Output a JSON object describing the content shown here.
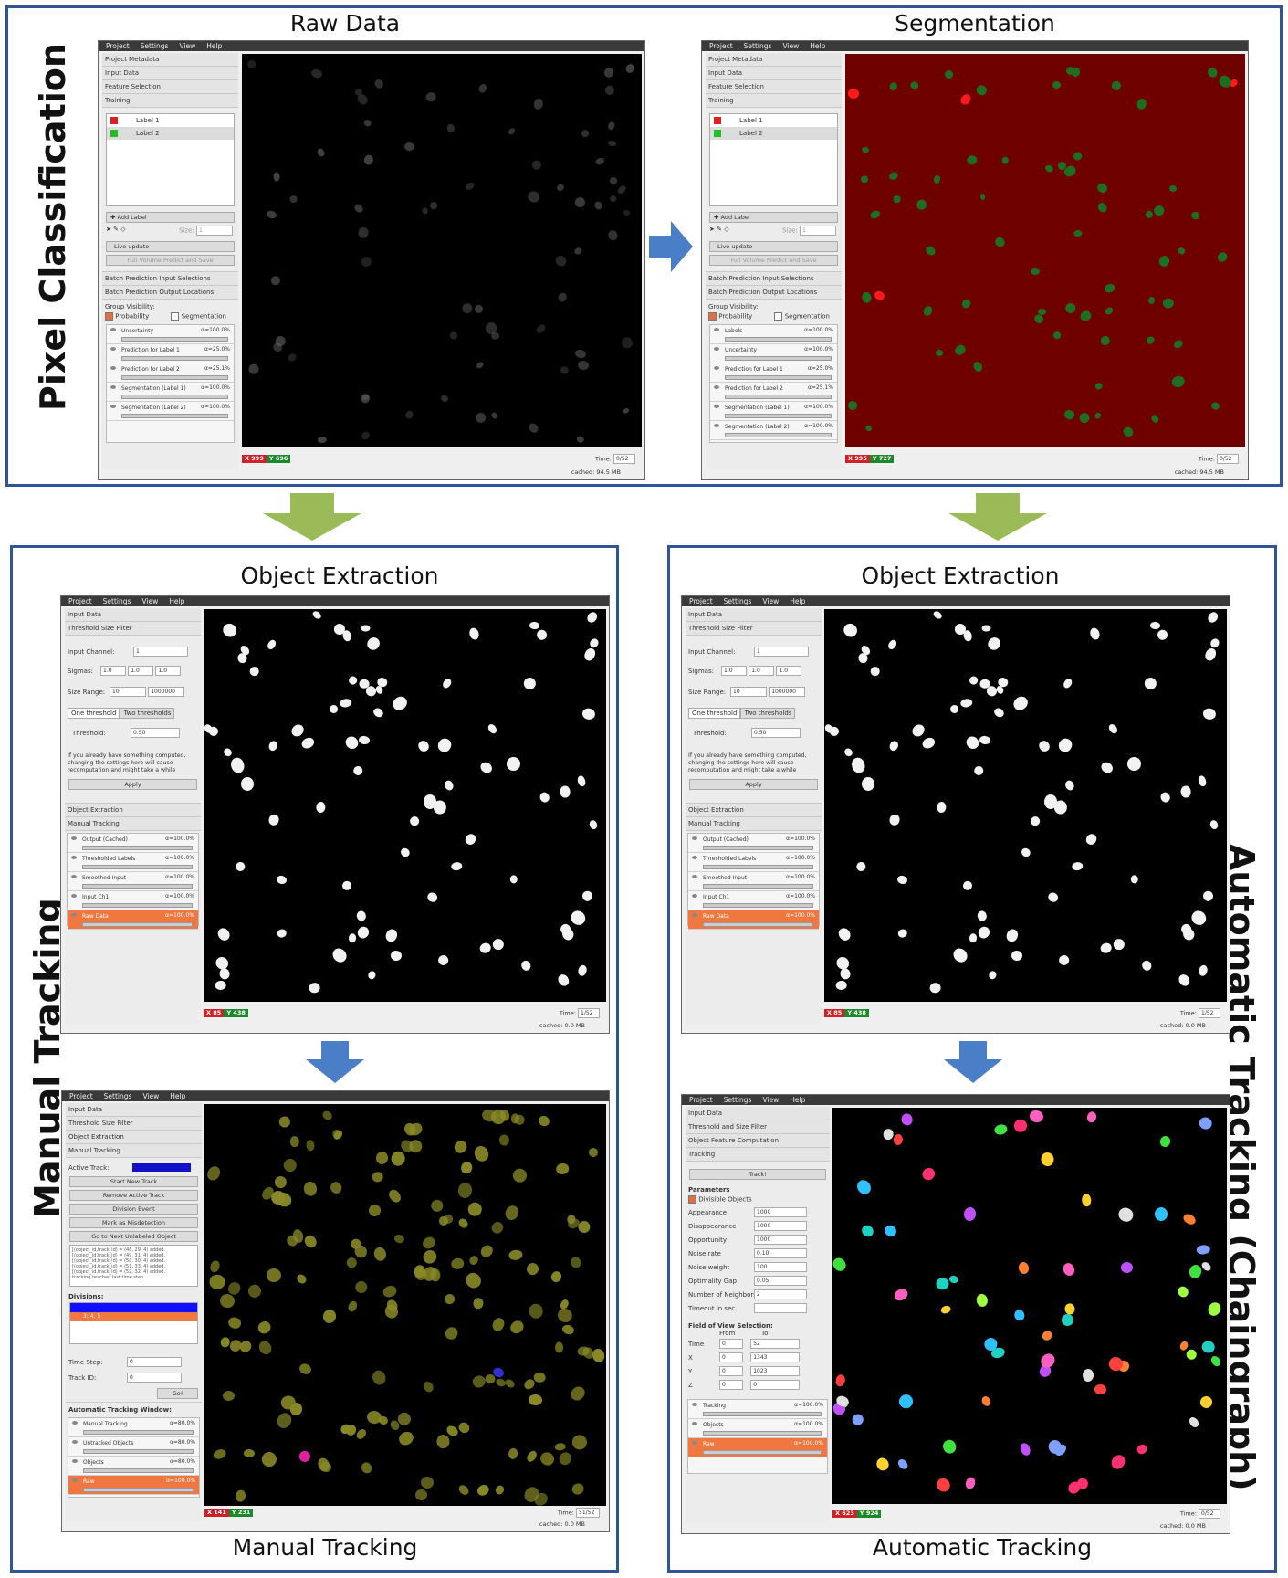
{
  "side_labels": {
    "pixel": "Pixel Classification",
    "manual": "Manual Tracking",
    "automatic": "Automatic Tracking (Chaingraph)"
  },
  "panel_titles": {
    "raw": "Raw Data",
    "seg": "Segmentation",
    "oe_left": "Object Extraction",
    "oe_right": "Object Extraction",
    "manual": "Manual Tracking",
    "automatic": "Automatic Tracking"
  },
  "menu": [
    "Project",
    "Settings",
    "View",
    "Help"
  ],
  "pc": {
    "applets": [
      "Project Metadata",
      "Input Data",
      "Feature Selection",
      "Training"
    ],
    "labels": [
      {
        "name": "Label 1",
        "color": "#e02020"
      },
      {
        "name": "Label 2",
        "color": "#20c020"
      }
    ],
    "add_label": "Add Label",
    "size_label": "Size:",
    "size_value": "1",
    "live_update": "Live update",
    "full_volume": "Full Volume Predict and Save",
    "batch": [
      "Batch Prediction Input Selections",
      "Batch Prediction Output Locations"
    ],
    "group_visibility": "Group Visibility:",
    "chk_prob": "Probability",
    "chk_seg": "Segmentation",
    "layers_raw": [
      {
        "name": "Uncertainty",
        "opacity": "α=100.0%"
      },
      {
        "name": "Prediction for Label 1",
        "opacity": "α=25.0%"
      },
      {
        "name": "Prediction for Label 2",
        "opacity": "α=25.1%"
      },
      {
        "name": "Segmentation (Label 1)",
        "opacity": "α=100.0%"
      },
      {
        "name": "Segmentation (Label 2)",
        "opacity": "α=100.0%"
      }
    ],
    "layers_seg": [
      {
        "name": "Labels",
        "opacity": "α=100.0%"
      },
      {
        "name": "Uncertainty",
        "opacity": "α=100.0%"
      },
      {
        "name": "Prediction for Label 1",
        "opacity": "α=25.0%"
      },
      {
        "name": "Prediction for Label 2",
        "opacity": "α=25.1%"
      },
      {
        "name": "Segmentation (Label 1)",
        "opacity": "α=100.0%"
      },
      {
        "name": "Segmentation (Label 2)",
        "opacity": "α=100.0%"
      }
    ],
    "raw_x": "999",
    "raw_y": "696",
    "seg_x": "995",
    "seg_y": "727",
    "time_label": "Time:",
    "time_value": "0/52",
    "cached": "cached: 94.5 MB"
  },
  "oe": {
    "applets": [
      "Input Data",
      "Threshold Size Filter"
    ],
    "input_channel_label": "Input Channel:",
    "input_channel": "1",
    "sigmas_label": "Sigmas:",
    "sigmas": [
      "1.0",
      "1.0",
      "1.0"
    ],
    "size_range_label": "Size Range:",
    "size_min": "10",
    "size_max": "1000000",
    "tab_one": "One threshold",
    "tab_two": "Two thresholds",
    "threshold_label": "Threshold:",
    "threshold": "0.50",
    "note": "If you already have something computed, changing the settings here will cause recomputation and might take a while",
    "apply": "Apply",
    "applets_after": [
      "Object Extraction",
      "Manual Tracking"
    ],
    "layers": [
      {
        "name": "Output (Cached)",
        "opacity": "α=100.0%"
      },
      {
        "name": "Thresholded Labels",
        "opacity": "α=100.0%"
      },
      {
        "name": "Smoothed Input",
        "opacity": "α=100.0%"
      },
      {
        "name": "Input Ch1",
        "opacity": "α=100.0%"
      },
      {
        "name": "Raw Data",
        "opacity": "α=100.0%"
      }
    ],
    "x": "85",
    "y": "438",
    "time_label": "Time:",
    "time_value": "1/52",
    "cached": "cached: 0.0 MB"
  },
  "mt": {
    "applets": [
      "Input Data",
      "Threshold Size Filter",
      "Object Extraction",
      "Manual Tracking"
    ],
    "active_track": "Active Track:",
    "buttons": [
      "Start New Track",
      "Remove Active Track",
      "Division Event",
      "Mark as Misdetection",
      "Go to Next Unlabeled Object"
    ],
    "log": [
      "[(object_id,track_id) = (48, 29, 4) added.",
      "[(object_id,track_id) = (49, 31, 4) added.",
      "[(object_id,track_id) = (50, 30, 4) added.",
      "[(object_id,track_id) = (51, 33, 4) added.",
      "[(object_id,track_id) = (52, 32, 4) added.",
      "tracking reached last time step."
    ],
    "divisions_label": "Divisions:",
    "division_selected": "3: 4, 5",
    "time_step_label": "Time Step:",
    "time_step": "0",
    "track_id_label": "Track ID:",
    "track_id": "0",
    "go": "Go!",
    "auto_window": "Automatic Tracking Window:",
    "layers": [
      {
        "name": "Manual Tracking",
        "opacity": "α=80.0%"
      },
      {
        "name": "Untracked Objects",
        "opacity": "α=80.0%"
      },
      {
        "name": "Objects",
        "opacity": "α=80.0%"
      },
      {
        "name": "Raw",
        "opacity": "α=100.0%"
      }
    ],
    "x": "141",
    "y": "231",
    "time_label": "Time:",
    "time_value": "51/52",
    "cached": "cached: 0.0 MB"
  },
  "at": {
    "applets": [
      "Input Data",
      "Threshold and Size Filter",
      "Object Feature Computation",
      "Tracking"
    ],
    "track": "Track!",
    "parameters": "Parameters",
    "divisible": "Divisible Objects",
    "params": [
      {
        "label": "Appearance",
        "value": "1000"
      },
      {
        "label": "Disappearance",
        "value": "1000"
      },
      {
        "label": "Opportunity",
        "value": "1000"
      },
      {
        "label": "Noise rate",
        "value": "0.10"
      },
      {
        "label": "Noise weight",
        "value": "100"
      },
      {
        "label": "Optimality Gap",
        "value": "0.05"
      },
      {
        "label": "Number of Neighbors",
        "value": "2"
      },
      {
        "label": "Timeout in sec.",
        "value": ""
      }
    ],
    "fov": "Field of View Selection:",
    "from": "From",
    "to": "To",
    "fov_rows": [
      {
        "label": "Time",
        "from": "0",
        "to": "52"
      },
      {
        "label": "X",
        "from": "0",
        "to": "1343"
      },
      {
        "label": "Y",
        "from": "0",
        "to": "1023"
      },
      {
        "label": "Z",
        "from": "0",
        "to": "0"
      }
    ],
    "layers": [
      {
        "name": "Tracking",
        "opacity": "α=100.0%"
      },
      {
        "name": "Objects",
        "opacity": "α=100.0%"
      },
      {
        "name": "Raw",
        "opacity": "α=100.0%"
      }
    ],
    "x": "623",
    "y": "924",
    "time_label": "Time:",
    "time_value": "0/52",
    "cached": "cached: 0.0 MB"
  },
  "colors": {
    "frame": "#2f5597",
    "arrow_blue": "#4a7fc8",
    "arrow_green": "#9bbb59",
    "seg_bg": "#6e0000",
    "selected_layer": "#f07840",
    "cell_green": "#1f6e20",
    "cell_olive": "#8a8a28"
  }
}
